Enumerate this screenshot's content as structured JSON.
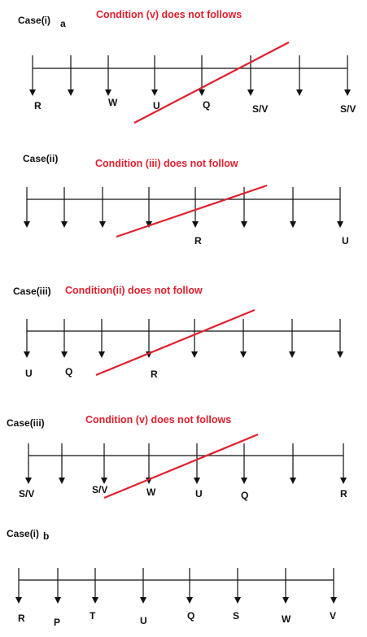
{
  "sections": [
    {
      "case": "Case(i)",
      "suffix": "a",
      "condition": "Condition (v) does not follows",
      "labels": [
        "R",
        "W",
        "U",
        "Q",
        "S/V",
        "S/V"
      ]
    },
    {
      "case": "Case(ii)",
      "condition": "Condition (iii) does not follow",
      "labels": [
        "R",
        "U"
      ]
    },
    {
      "case": "Case(iii)",
      "condition": "Condition(ii) does not follow",
      "labels": [
        "U",
        "Q",
        "R"
      ]
    },
    {
      "case": "Case(iii)",
      "condition": "Condition (v) does not follows",
      "labels": [
        "S/V",
        "S/V",
        "W",
        "U",
        "Q",
        "R"
      ]
    },
    {
      "case": "Case(i)",
      "suffix": "b",
      "labels": [
        "R",
        "P",
        "T",
        "U",
        "Q",
        "S",
        "W",
        "V"
      ]
    }
  ]
}
